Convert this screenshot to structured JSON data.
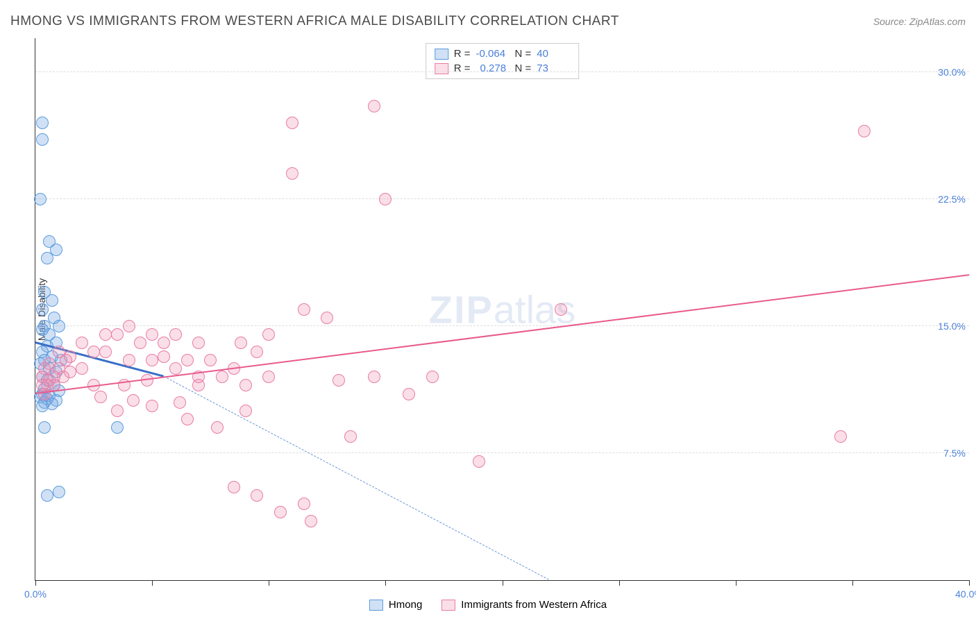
{
  "title": "HMONG VS IMMIGRANTS FROM WESTERN AFRICA MALE DISABILITY CORRELATION CHART",
  "source": "Source: ZipAtlas.com",
  "ylabel": "Male Disability",
  "watermark_bold": "ZIP",
  "watermark_light": "atlas",
  "chart": {
    "type": "scatter",
    "xlim": [
      0,
      40
    ],
    "ylim": [
      0,
      32
    ],
    "x_ticks": [
      0,
      5,
      10,
      15,
      20,
      25,
      30,
      35,
      40
    ],
    "y_ticks": [
      7.5,
      15.0,
      22.5,
      30.0
    ],
    "y_tick_labels": [
      "7.5%",
      "15.0%",
      "22.5%",
      "30.0%"
    ],
    "x_first_label": "0.0%",
    "x_last_label": "40.0%",
    "background_color": "#ffffff",
    "grid_color": "#dddddd",
    "marker_radius": 9,
    "marker_border_width": 1.5,
    "series": [
      {
        "name": "Hmong",
        "fill_color": "rgba(120,170,230,0.35)",
        "border_color": "#5a9bdc",
        "trend_color": "#3a6fc8",
        "trend_dashed_color": "#6a95d8",
        "R": "-0.064",
        "N": "40",
        "trend": {
          "x1": 0,
          "y1": 14.0,
          "x2": 5.5,
          "y2": 12.0
        },
        "trend_dashed": {
          "x1": 5.5,
          "y1": 12.0,
          "x2": 22.0,
          "y2": 0.0
        },
        "points": [
          [
            0.3,
            27.0
          ],
          [
            0.3,
            26.0
          ],
          [
            0.2,
            22.5
          ],
          [
            0.6,
            20.0
          ],
          [
            0.9,
            19.5
          ],
          [
            0.5,
            19.0
          ],
          [
            0.4,
            17.0
          ],
          [
            0.7,
            16.5
          ],
          [
            0.3,
            16.0
          ],
          [
            0.8,
            15.5
          ],
          [
            0.4,
            15.0
          ],
          [
            1.0,
            15.0
          ],
          [
            0.3,
            14.8
          ],
          [
            0.6,
            14.5
          ],
          [
            0.9,
            14.0
          ],
          [
            0.5,
            13.8
          ],
          [
            0.3,
            13.5
          ],
          [
            0.7,
            13.2
          ],
          [
            0.4,
            13.0
          ],
          [
            1.1,
            13.0
          ],
          [
            0.2,
            12.8
          ],
          [
            0.6,
            12.5
          ],
          [
            0.9,
            12.3
          ],
          [
            0.3,
            12.0
          ],
          [
            0.5,
            11.8
          ],
          [
            0.8,
            11.5
          ],
          [
            0.4,
            11.3
          ],
          [
            1.0,
            11.2
          ],
          [
            0.3,
            11.0
          ],
          [
            0.6,
            10.9
          ],
          [
            0.2,
            10.8
          ],
          [
            0.5,
            10.7
          ],
          [
            0.9,
            10.6
          ],
          [
            0.4,
            10.5
          ],
          [
            0.7,
            10.4
          ],
          [
            0.3,
            10.3
          ],
          [
            0.4,
            9.0
          ],
          [
            3.5,
            9.0
          ],
          [
            0.5,
            5.0
          ],
          [
            1.0,
            5.2
          ]
        ]
      },
      {
        "name": "Immigrants from Western Africa",
        "fill_color": "rgba(240,150,180,0.3)",
        "border_color": "#e87ba5",
        "trend_color": "#e85a8c",
        "R": "0.278",
        "N": "73",
        "trend": {
          "x1": 0,
          "y1": 11.0,
          "x2": 40,
          "y2": 18.0
        },
        "points": [
          [
            14.5,
            28.0
          ],
          [
            11.0,
            27.0
          ],
          [
            11.0,
            24.0
          ],
          [
            15.0,
            22.5
          ],
          [
            35.5,
            26.5
          ],
          [
            22.5,
            16.0
          ],
          [
            11.5,
            16.0
          ],
          [
            12.5,
            15.5
          ],
          [
            10.0,
            14.5
          ],
          [
            8.8,
            14.0
          ],
          [
            7.0,
            14.0
          ],
          [
            6.0,
            14.5
          ],
          [
            5.5,
            14.0
          ],
          [
            5.0,
            14.5
          ],
          [
            4.5,
            14.0
          ],
          [
            4.0,
            15.0
          ],
          [
            3.5,
            14.5
          ],
          [
            3.0,
            13.5
          ],
          [
            3.0,
            14.5
          ],
          [
            2.5,
            13.5
          ],
          [
            2.0,
            14.0
          ],
          [
            2.0,
            12.5
          ],
          [
            1.5,
            13.2
          ],
          [
            1.5,
            12.3
          ],
          [
            1.3,
            13.0
          ],
          [
            1.2,
            12.0
          ],
          [
            1.0,
            13.5
          ],
          [
            1.0,
            12.5
          ],
          [
            0.8,
            12.0
          ],
          [
            0.8,
            11.5
          ],
          [
            0.6,
            12.8
          ],
          [
            0.6,
            11.8
          ],
          [
            0.5,
            11.5
          ],
          [
            0.4,
            11.0
          ],
          [
            0.4,
            12.5
          ],
          [
            0.3,
            12.0
          ],
          [
            0.3,
            11.5
          ],
          [
            4.0,
            13.0
          ],
          [
            5.0,
            13.0
          ],
          [
            5.5,
            13.2
          ],
          [
            6.0,
            12.5
          ],
          [
            6.5,
            13.0
          ],
          [
            7.0,
            12.0
          ],
          [
            7.0,
            11.5
          ],
          [
            7.5,
            13.0
          ],
          [
            8.0,
            12.0
          ],
          [
            8.5,
            12.5
          ],
          [
            9.0,
            11.5
          ],
          [
            9.5,
            13.5
          ],
          [
            10.0,
            12.0
          ],
          [
            14.5,
            12.0
          ],
          [
            17.0,
            12.0
          ],
          [
            13.0,
            11.8
          ],
          [
            16.0,
            11.0
          ],
          [
            9.0,
            10.0
          ],
          [
            6.2,
            10.5
          ],
          [
            5.0,
            10.3
          ],
          [
            4.2,
            10.6
          ],
          [
            3.5,
            10.0
          ],
          [
            2.8,
            10.8
          ],
          [
            6.5,
            9.5
          ],
          [
            7.8,
            9.0
          ],
          [
            8.5,
            5.5
          ],
          [
            9.5,
            5.0
          ],
          [
            10.5,
            4.0
          ],
          [
            11.5,
            4.5
          ],
          [
            11.8,
            3.5
          ],
          [
            13.5,
            8.5
          ],
          [
            19.0,
            7.0
          ],
          [
            34.5,
            8.5
          ],
          [
            2.5,
            11.5
          ],
          [
            3.8,
            11.5
          ],
          [
            4.8,
            11.8
          ]
        ]
      }
    ]
  },
  "legend_labels": {
    "hmong": "Hmong",
    "waf": "Immigrants from Western Africa",
    "R": "R =",
    "N": "N ="
  }
}
